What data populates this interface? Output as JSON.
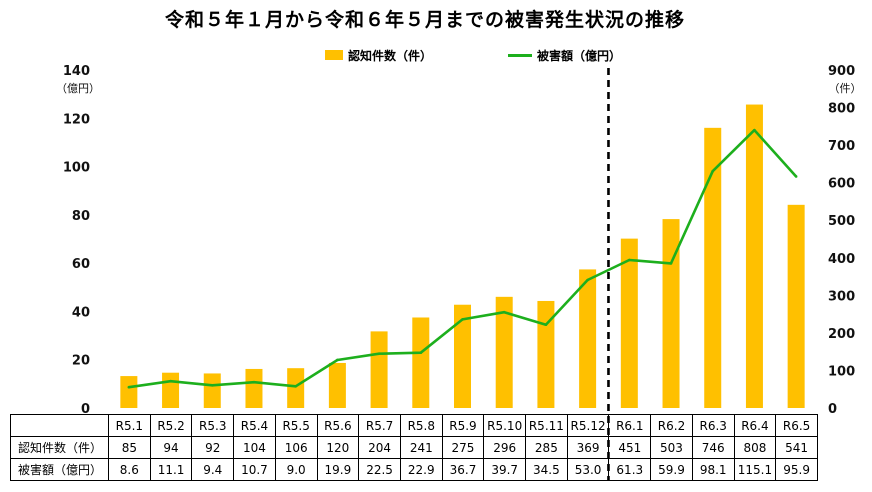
{
  "chart_data": {
    "type": "bar",
    "title": "令和５年１月から令和６年５月までの被害発生状況の推移",
    "categories": [
      "R5.1",
      "R5.2",
      "R5.3",
      "R5.4",
      "R5.5",
      "R5.6",
      "R5.7",
      "R5.8",
      "R5.9",
      "R5.10",
      "R5.11",
      "R5.12",
      "R6.1",
      "R6.2",
      "R6.3",
      "R6.4",
      "R6.5"
    ],
    "series": [
      {
        "name": "認知件数（件）",
        "type": "bar",
        "axis": "right",
        "color": "#FFC000",
        "values": [
          85,
          94,
          92,
          104,
          106,
          120,
          204,
          241,
          275,
          296,
          285,
          369,
          451,
          503,
          746,
          808,
          541
        ]
      },
      {
        "name": "被害額（億円）",
        "type": "line",
        "axis": "left",
        "color": "#1DAF1D",
        "values": [
          8.6,
          11.1,
          9.4,
          10.7,
          9.0,
          19.9,
          22.5,
          22.9,
          36.7,
          39.7,
          34.5,
          53.0,
          61.3,
          59.9,
          98.1,
          115.1,
          95.9
        ]
      }
    ],
    "y_left": {
      "unit": "（億円）",
      "ylim": [
        0,
        140
      ],
      "ticks": [
        0,
        20,
        40,
        60,
        80,
        100,
        120,
        140
      ]
    },
    "y_right": {
      "unit": "（件）",
      "ylim": [
        0,
        900
      ],
      "ticks": [
        0,
        100,
        200,
        300,
        400,
        500,
        600,
        700,
        800,
        900
      ]
    },
    "grid": false,
    "legend": "top",
    "divider_after": "R5.12",
    "data_table": true
  }
}
